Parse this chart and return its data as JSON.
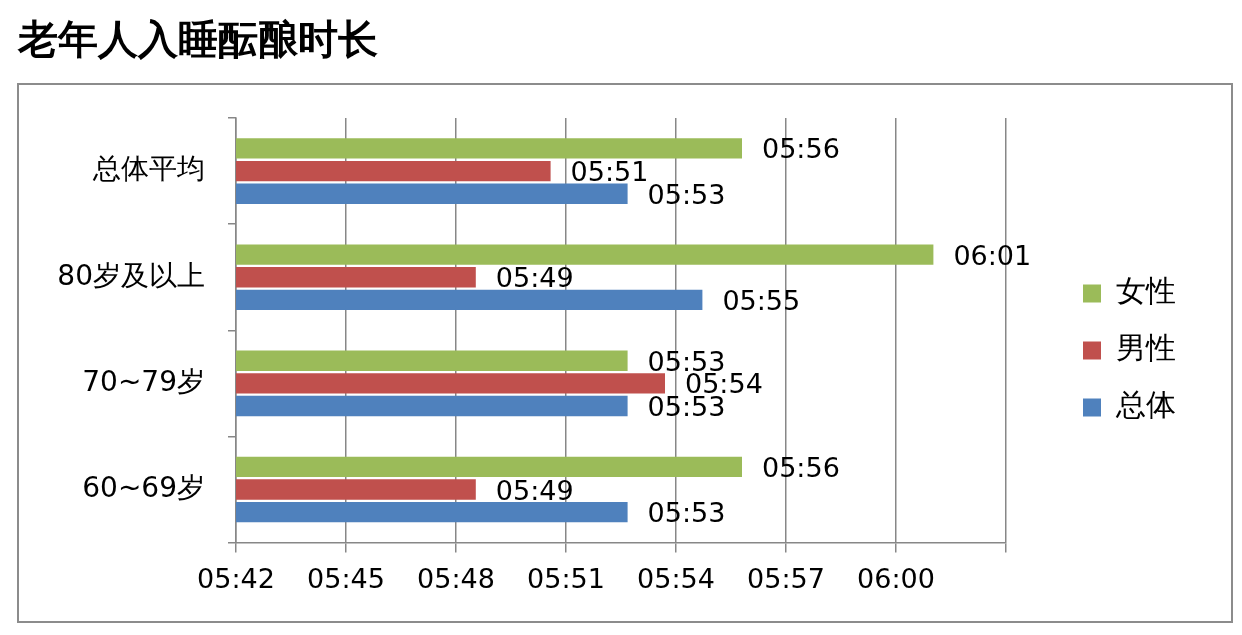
{
  "chart_data": {
    "type": "bar",
    "orientation": "horizontal",
    "title": "老年人入睡酝酿时长",
    "categories": [
      "总体平均",
      "80岁及以上",
      "70~79岁",
      "60~69岁"
    ],
    "series": [
      {
        "name": "女性",
        "color": "#9bbb59",
        "values": [
          5.93,
          6.017,
          5.878,
          5.93
        ],
        "value_labels": [
          "05:56",
          "06:01",
          "05:53",
          "05:56"
        ]
      },
      {
        "name": "男性",
        "color": "#c0504d",
        "values": [
          5.843,
          5.809,
          5.895,
          5.809
        ],
        "value_labels": [
          "05:51",
          "05:49",
          "05:54",
          "05:49"
        ]
      },
      {
        "name": "总体",
        "color": "#4f81bd",
        "values": [
          5.878,
          5.912,
          5.878,
          5.878
        ],
        "value_labels": [
          "05:53",
          "05:55",
          "05:53",
          "05:53"
        ]
      }
    ],
    "xlim": [
      5.7,
      6.05
    ],
    "xticks": [
      {
        "value": 5.7,
        "label": "05:42"
      },
      {
        "value": 5.75,
        "label": "05:45"
      },
      {
        "value": 5.8,
        "label": "05:48"
      },
      {
        "value": 5.85,
        "label": "05:51"
      },
      {
        "value": 5.9,
        "label": "05:54"
      },
      {
        "value": 5.95,
        "label": "05:57"
      },
      {
        "value": 6.0,
        "label": "06:00"
      },
      {
        "value": 6.05,
        "label": null
      }
    ],
    "grid": "x",
    "legend": "right"
  }
}
